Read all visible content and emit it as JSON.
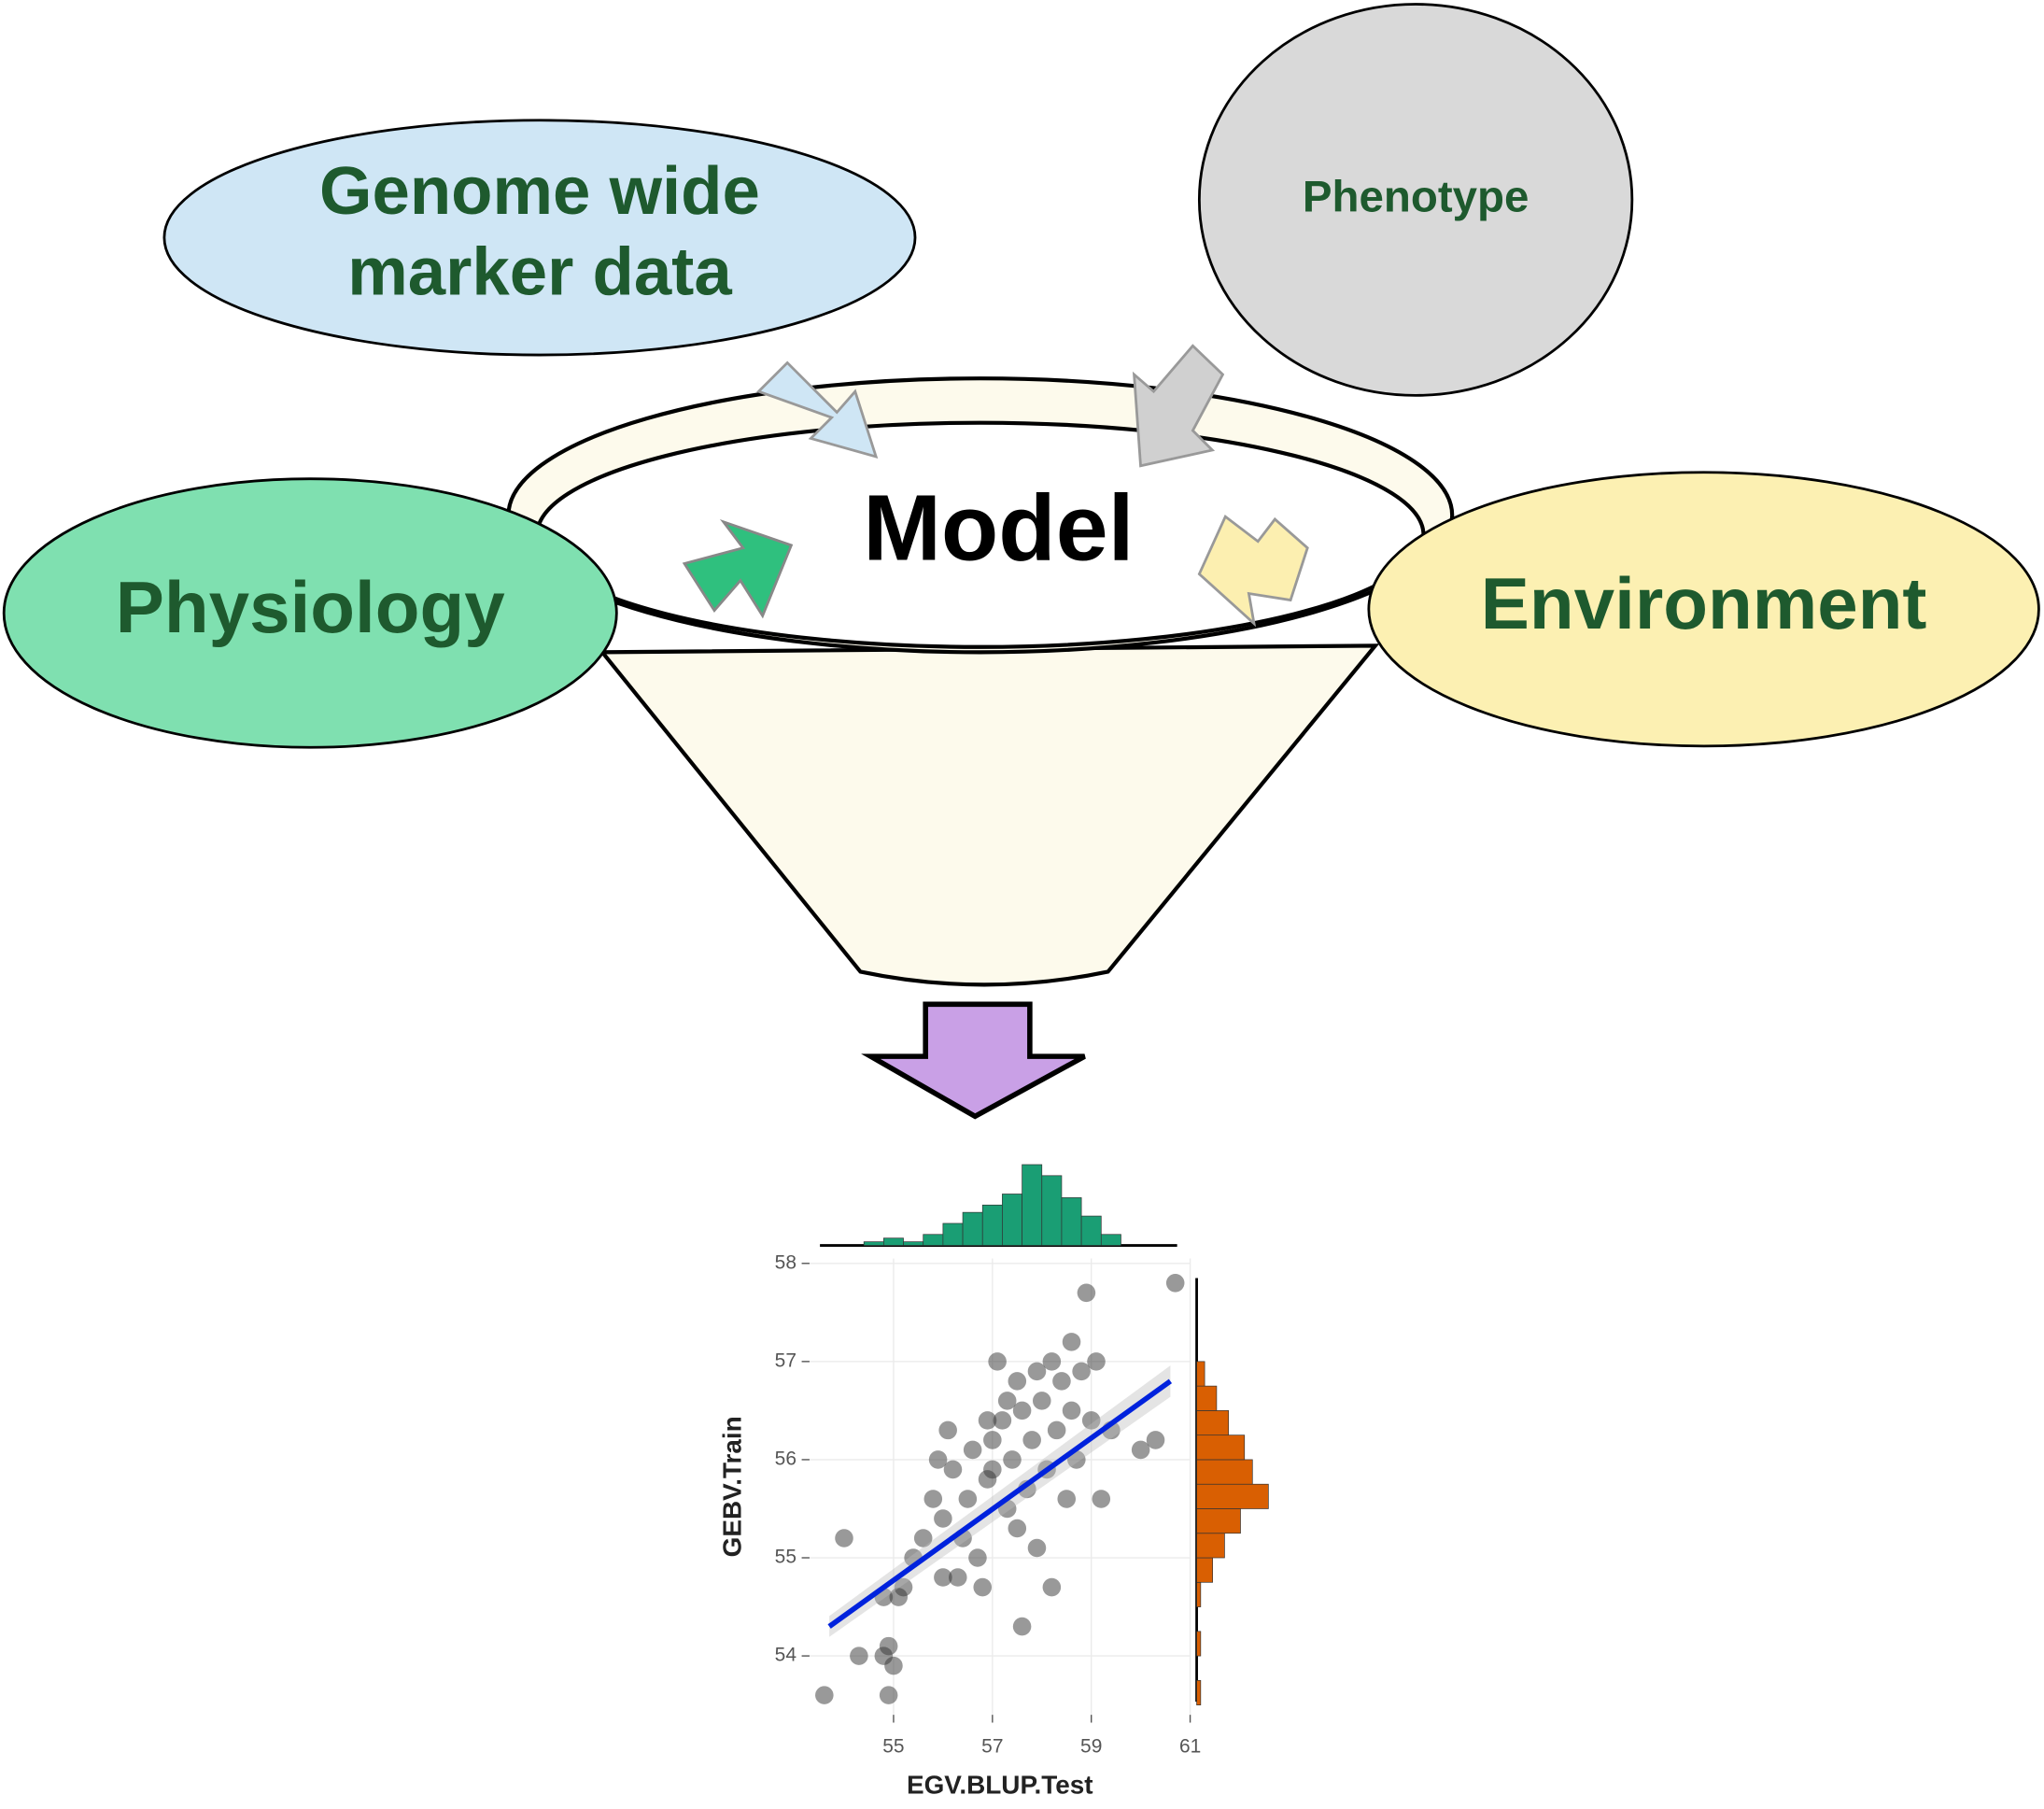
{
  "nodes": [
    {
      "lines": [
        "Genome wide",
        "marker data"
      ]
    },
    {
      "lines": [
        "Phenotype"
      ]
    },
    {
      "lines": [
        "Physiology"
      ]
    },
    {
      "lines": [
        "Environment"
      ]
    },
    {
      "lines": [
        "Model"
      ]
    }
  ],
  "chart_data": {
    "type": "scatter",
    "x_label": "EGV.BLUP.Test",
    "y_label": "GEBV.Train",
    "xlim": [
      53.3,
      61.0
    ],
    "ylim": [
      53.4,
      58.05
    ],
    "xticks": [
      55,
      57,
      59,
      61
    ],
    "yticks": [
      54,
      55,
      56,
      57,
      58
    ],
    "grid": true,
    "color": "#333333",
    "x": [
      53.6,
      54.0,
      54.3,
      54.9,
      54.9,
      54.8,
      55.0,
      55.1,
      54.8,
      55.2,
      55.4,
      55.6,
      55.8,
      56.0,
      56.2,
      56.4,
      56.6,
      56.8,
      56.9,
      57.0,
      57.1,
      57.2,
      57.3,
      57.4,
      57.5,
      57.6,
      57.6,
      57.7,
      57.8,
      57.9,
      58.0,
      58.1,
      58.2,
      58.3,
      58.4,
      58.5,
      58.6,
      58.7,
      58.8,
      58.9,
      59.0,
      59.2,
      59.4,
      60.0,
      60.3,
      60.7,
      56.1,
      56.3,
      56.5,
      56.7,
      57.0,
      57.3,
      57.9,
      58.2,
      55.9,
      56.0,
      57.5,
      58.6,
      59.1,
      56.9
    ],
    "y": [
      53.6,
      55.2,
      54.0,
      54.1,
      53.6,
      54.0,
      53.9,
      54.6,
      54.6,
      54.7,
      55.0,
      55.2,
      55.6,
      55.4,
      55.9,
      55.2,
      56.1,
      54.7,
      55.8,
      56.2,
      57.0,
      56.4,
      55.5,
      56.0,
      55.3,
      54.3,
      56.5,
      55.7,
      56.2,
      55.1,
      56.6,
      55.9,
      54.7,
      56.3,
      56.8,
      55.6,
      57.2,
      56.0,
      56.9,
      57.7,
      56.4,
      55.6,
      56.3,
      56.1,
      56.2,
      57.8,
      56.3,
      54.8,
      55.6,
      55.0,
      55.9,
      56.6,
      56.9,
      57.0,
      56.0,
      54.8,
      56.8,
      56.5,
      57.0,
      56.4
    ],
    "trend_line": {
      "x": [
        53.7,
        60.6
      ],
      "y": [
        54.3,
        56.8
      ],
      "color": "#0022dd"
    },
    "x_histogram": {
      "color": "#1a9e74",
      "bins": [
        54.4,
        54.8,
        55.2,
        55.6,
        56.0,
        56.4,
        56.8,
        57.2,
        57.6,
        58.0,
        58.4,
        58.8,
        59.2,
        59.6
      ],
      "counts": [
        1,
        2,
        1,
        3,
        6,
        9,
        11,
        14,
        22,
        19,
        13,
        8,
        3
      ]
    },
    "y_histogram": {
      "color": "#d95f02",
      "bins": [
        53.5,
        53.75,
        54.0,
        54.25,
        54.5,
        54.75,
        55.0,
        55.25,
        55.5,
        55.75,
        56.0,
        56.25,
        56.5,
        56.75,
        57.0
      ],
      "counts": [
        1,
        0,
        1,
        0,
        1,
        4,
        7,
        11,
        18,
        14,
        12,
        8,
        5,
        2
      ]
    }
  }
}
